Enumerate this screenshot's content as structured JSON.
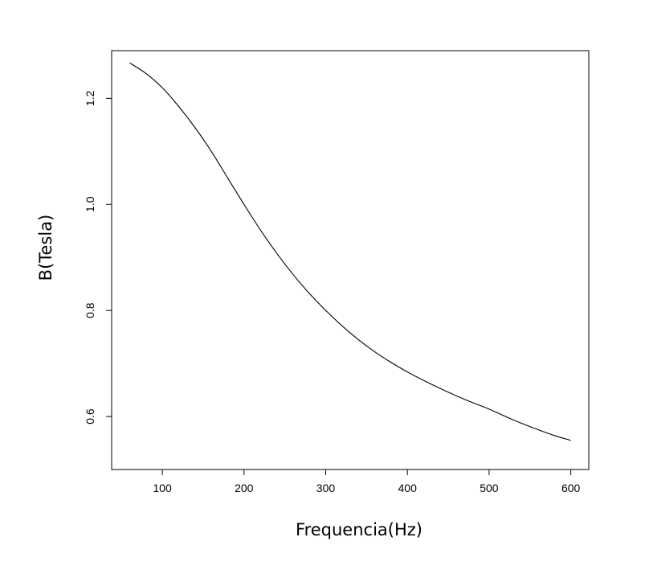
{
  "chart_data": {
    "type": "line",
    "title": "",
    "xlabel": "Frequencia(Hz)",
    "ylabel": "B(Tesla)",
    "xlim": [
      38,
      622
    ],
    "ylim": [
      0.5,
      1.29
    ],
    "xticks": [
      100,
      200,
      300,
      400,
      500,
      600
    ],
    "yticks": [
      0.6,
      0.8,
      1.0,
      1.2
    ],
    "xtick_labels": [
      "100",
      "200",
      "300",
      "400",
      "500",
      "600"
    ],
    "ytick_labels": [
      "0.6",
      "0.8",
      "1.0",
      "1.2"
    ],
    "grid": false,
    "legend": "none",
    "series": [
      {
        "x": [
          60,
          80,
          100,
          120,
          140,
          160,
          180,
          200,
          220,
          240,
          260,
          280,
          300,
          320,
          340,
          360,
          380,
          400,
          420,
          440,
          460,
          480,
          500,
          520,
          540,
          560,
          580,
          600
        ],
        "y": [
          1.267,
          1.247,
          1.22,
          1.185,
          1.145,
          1.1,
          1.05,
          1.0,
          0.952,
          0.908,
          0.868,
          0.832,
          0.8,
          0.771,
          0.745,
          0.722,
          0.702,
          0.684,
          0.668,
          0.653,
          0.639,
          0.626,
          0.614,
          0.6,
          0.587,
          0.575,
          0.564,
          0.555
        ],
        "color": "#000000"
      }
    ]
  }
}
